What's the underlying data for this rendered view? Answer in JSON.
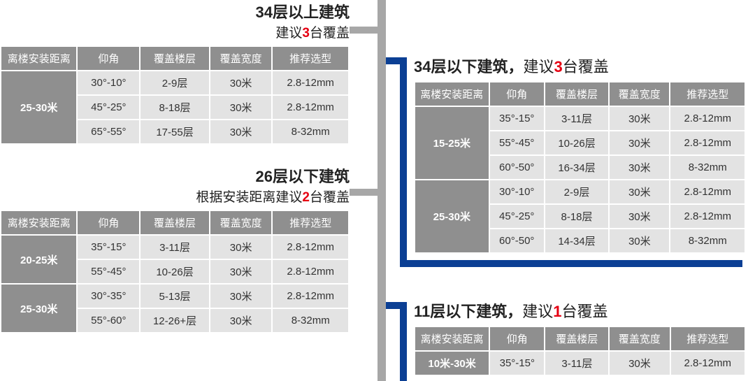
{
  "columns": [
    "离楼安装距离",
    "仰角",
    "覆盖楼层",
    "覆盖宽度",
    "推荐选型"
  ],
  "left1": {
    "title": "34层以上建筑",
    "sub_prefix": "建议",
    "sub_num": "3",
    "sub_suffix": "台覆盖",
    "groups": [
      {
        "dist": "25-30米",
        "rows": [
          [
            "30°-10°",
            "2-9层",
            "30米",
            "2.8-12mm"
          ],
          [
            "45°-25°",
            "8-18层",
            "30米",
            "2.8-12mm"
          ],
          [
            "65°-55°",
            "17-55层",
            "30米",
            "8-32mm"
          ]
        ]
      }
    ]
  },
  "left2": {
    "title": "26层以下建筑",
    "sub_prefix": "根据安装距离建议",
    "sub_num": "2",
    "sub_suffix": "台覆盖",
    "groups": [
      {
        "dist": "20-25米",
        "rows": [
          [
            "35°-15°",
            "3-11层",
            "30米",
            "2.8-12mm"
          ],
          [
            "55°-45°",
            "10-26层",
            "30米",
            "2.8-12mm"
          ]
        ]
      },
      {
        "dist": "25-30米",
        "rows": [
          [
            "30°-35°",
            "5-13层",
            "30米",
            "2.8-12mm"
          ],
          [
            "55°-60°",
            "12-26+层",
            "30米",
            "8-32mm"
          ]
        ]
      }
    ]
  },
  "right1": {
    "title_a": "34层以下建筑，",
    "title_mid": "建议",
    "title_num": "3",
    "title_b": "台覆盖",
    "groups": [
      {
        "dist": "15-25米",
        "rows": [
          [
            "35°-15°",
            "3-11层",
            "30米",
            "2.8-12mm"
          ],
          [
            "55°-45°",
            "10-26层",
            "30米",
            "2.8-12mm"
          ],
          [
            "60°-50°",
            "16-34层",
            "30米",
            "8-32mm"
          ]
        ]
      },
      {
        "dist": "25-30米",
        "rows": [
          [
            "30°-10°",
            "2-9层",
            "30米",
            "2.8-12mm"
          ],
          [
            "45°-25°",
            "8-18层",
            "30米",
            "2.8-12mm"
          ],
          [
            "60°-50°",
            "14-34层",
            "30米",
            "8-32mm"
          ]
        ]
      }
    ]
  },
  "right2": {
    "title_a": "11层以下建筑，",
    "title_mid": "建议",
    "title_num": "1",
    "title_b": "台覆盖",
    "groups": [
      {
        "dist": "10米-30米",
        "rows": [
          [
            "35°-15°",
            "3-11层",
            "30米",
            "2.8-12mm"
          ]
        ]
      }
    ]
  },
  "colwidths_left": [
    110,
    90,
    100,
    90,
    110
  ],
  "colwidths_right": [
    110,
    80,
    95,
    90,
    110
  ]
}
